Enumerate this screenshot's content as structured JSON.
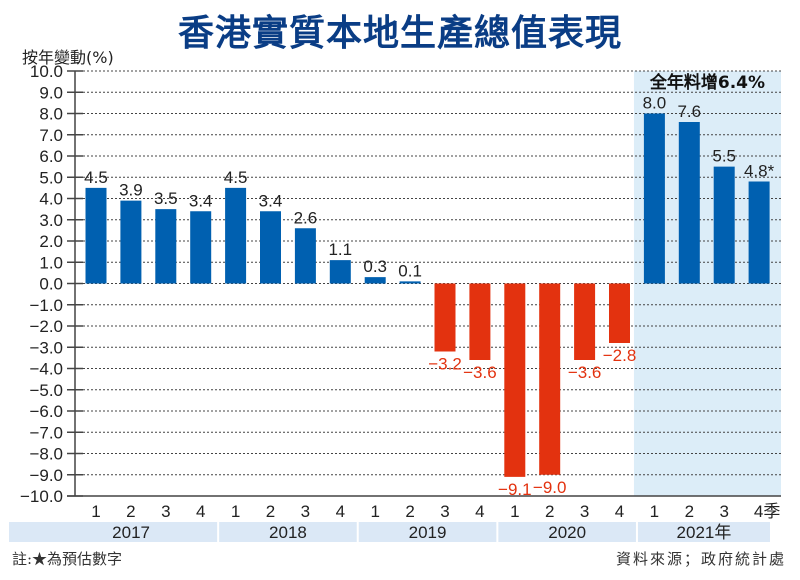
{
  "chart_data": {
    "type": "bar",
    "title": "香港實質本地生產總值表現",
    "ylabel": "按年變動(%)",
    "xlabel": "",
    "ylim": [
      -10,
      10
    ],
    "yticks": [
      "10.0",
      "9.0",
      "8.0",
      "7.0",
      "6.0",
      "5.0",
      "4.0",
      "3.0",
      "2.0",
      "1.0",
      "0.0",
      "-1.0",
      "-2.0",
      "-3.0",
      "-4.0",
      "-5.0",
      "-6.0",
      "-7.0",
      "-8.0",
      "-9.0",
      "-10.0"
    ],
    "grid": true,
    "categories": [
      "2017 Q1",
      "2017 Q2",
      "2017 Q3",
      "2017 Q4",
      "2018 Q1",
      "2018 Q2",
      "2018 Q3",
      "2018 Q4",
      "2019 Q1",
      "2019 Q2",
      "2019 Q3",
      "2019 Q4",
      "2020 Q1",
      "2020 Q2",
      "2020 Q3",
      "2020 Q4",
      "2021 Q1",
      "2021 Q2",
      "2021 Q3",
      "2021 Q4"
    ],
    "quarter_labels": [
      "1",
      "2",
      "3",
      "4",
      "1",
      "2",
      "3",
      "4",
      "1",
      "2",
      "3",
      "4",
      "1",
      "2",
      "3",
      "4",
      "1",
      "2",
      "3",
      "4季"
    ],
    "years": [
      {
        "label": "2017",
        "quarters": 4
      },
      {
        "label": "2018",
        "quarters": 4
      },
      {
        "label": "2019",
        "quarters": 4
      },
      {
        "label": "2020",
        "quarters": 4
      },
      {
        "label": "2021年",
        "quarters": 4
      }
    ],
    "values": [
      4.5,
      3.9,
      3.5,
      3.4,
      4.5,
      3.4,
      2.6,
      1.1,
      0.3,
      0.1,
      -3.2,
      -3.6,
      -9.1,
      -9.0,
      -3.6,
      -2.8,
      8.0,
      7.6,
      5.5,
      4.8
    ],
    "value_labels": [
      "4.5",
      "3.9",
      "3.5",
      "3.4",
      "4.5",
      "3.4",
      "2.6",
      "1.1",
      "0.3",
      "0.1",
      "−3.2",
      "−3.6",
      "−9.1",
      "−9.0",
      "−3.6",
      "−2.8",
      "8.0",
      "7.6",
      "5.5",
      "4.8*"
    ],
    "highlight": {
      "label": "全年料增6.4%",
      "range": [
        "2021 Q1",
        "2021 Q4"
      ]
    },
    "colors": {
      "positive": "#0060b0",
      "negative": "#e3320f",
      "highlight_bg": "#dcedf8",
      "year_band": "#dbe8f6",
      "title": "#0a3d85"
    }
  },
  "footer": {
    "note": "註:★為預估數字",
    "source": "資料來源；政府統計處"
  }
}
